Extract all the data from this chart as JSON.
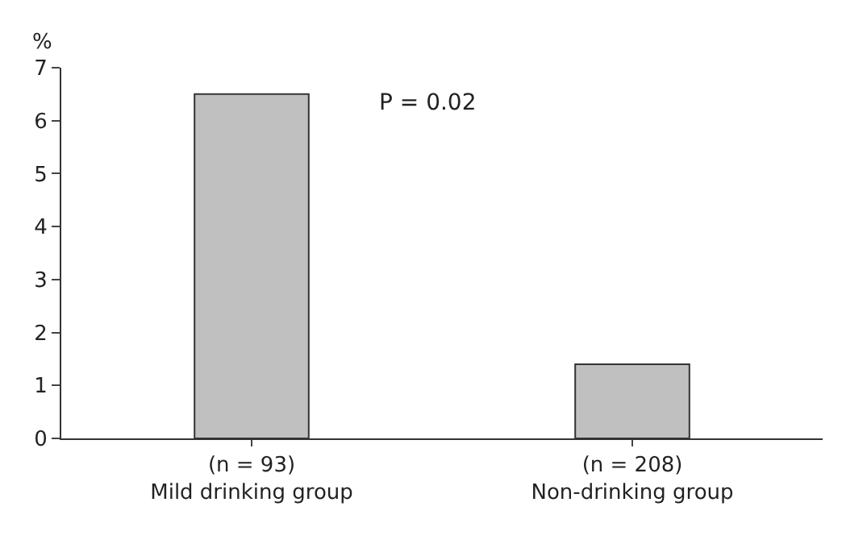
{
  "chart_data": {
    "type": "bar",
    "ylabel": "%",
    "categories": [
      "(n = 93)\nMild drinking group",
      "(n = 208)\nNon-drinking group"
    ],
    "values": [
      6.5,
      1.4
    ],
    "color": "#c0c0c0",
    "ylim": [
      0,
      7
    ],
    "yticks": [
      0,
      1,
      2,
      3,
      4,
      5,
      6,
      7
    ],
    "annotations": [
      "P = 0.02"
    ]
  }
}
